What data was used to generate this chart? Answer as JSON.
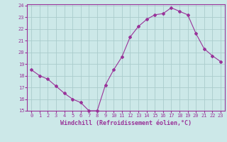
{
  "x": [
    0,
    1,
    2,
    3,
    4,
    5,
    6,
    7,
    8,
    9,
    10,
    11,
    12,
    13,
    14,
    15,
    16,
    17,
    18,
    19,
    20,
    21,
    22,
    23
  ],
  "y": [
    18.5,
    18.0,
    17.7,
    17.1,
    16.5,
    16.0,
    15.7,
    15.0,
    15.0,
    17.2,
    18.5,
    19.6,
    21.3,
    22.2,
    22.8,
    23.2,
    23.3,
    23.8,
    23.5,
    23.2,
    21.6,
    20.3,
    19.7,
    19.2
  ],
  "line_color": "#993399",
  "marker": "D",
  "marker_size": 2,
  "background_color": "#cce8e8",
  "grid_color": "#aacccc",
  "xlabel": "Windchill (Refroidissement éolien,°C)",
  "xlabel_color": "#993399",
  "ylim": [
    15,
    24
  ],
  "xlim": [
    -0.5,
    23.5
  ],
  "yticks": [
    15,
    16,
    17,
    18,
    19,
    20,
    21,
    22,
    23,
    24
  ],
  "xticks": [
    0,
    1,
    2,
    3,
    4,
    5,
    6,
    7,
    8,
    9,
    10,
    11,
    12,
    13,
    14,
    15,
    16,
    17,
    18,
    19,
    20,
    21,
    22,
    23
  ],
  "tick_color": "#993399",
  "spine_color": "#993399",
  "axis_bg": "#cce8e8",
  "tick_fontsize": 5,
  "xlabel_fontsize": 6
}
